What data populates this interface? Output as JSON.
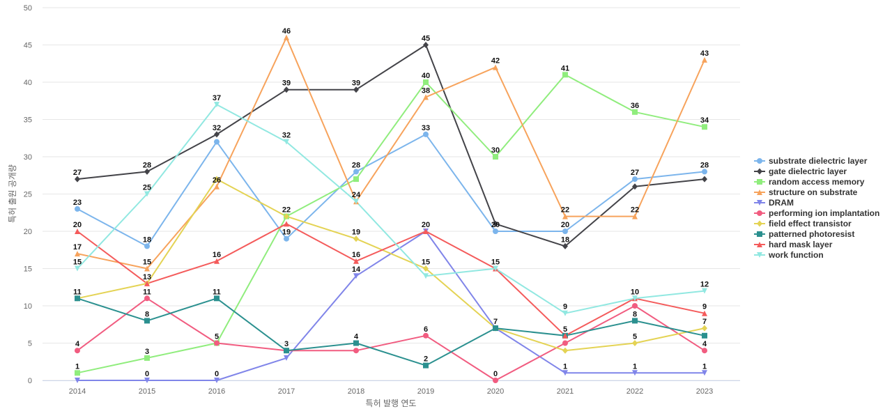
{
  "chart_data": {
    "type": "line",
    "xlabel": "특허 발행 연도",
    "ylabel": "특허 출원 공개량",
    "ylim": [
      0,
      50
    ],
    "yticks": [
      0,
      5,
      10,
      15,
      20,
      25,
      30,
      35,
      40,
      45,
      50
    ],
    "categories": [
      "2014",
      "2015",
      "2016",
      "2017",
      "2018",
      "2019",
      "2020",
      "2021",
      "2022",
      "2023"
    ],
    "grid": "horizontal",
    "legend_position": "right",
    "series": [
      {
        "name": "substrate dielectric layer",
        "color": "#7cb5ec",
        "marker": "circle",
        "values": [
          23,
          18,
          32,
          19,
          28,
          33,
          20,
          20,
          27,
          28
        ]
      },
      {
        "name": "gate dielectric layer",
        "color": "#434348",
        "marker": "diamond",
        "values": [
          27,
          28,
          33,
          39,
          39,
          45,
          21,
          18,
          26,
          27
        ]
      },
      {
        "name": "random access memory",
        "color": "#90ed7d",
        "marker": "square",
        "values": [
          1,
          3,
          5,
          22,
          27,
          40,
          30,
          41,
          36,
          34
        ]
      },
      {
        "name": "structure on substrate",
        "color": "#f7a35c",
        "marker": "triangle",
        "values": [
          17,
          15,
          26,
          46,
          24,
          38,
          42,
          22,
          22,
          43
        ]
      },
      {
        "name": "DRAM",
        "color": "#8085e9",
        "marker": "triangle-down",
        "values": [
          0,
          0,
          0,
          3,
          14,
          20,
          7,
          1,
          1,
          1
        ]
      },
      {
        "name": "performing ion implantation",
        "color": "#f15c80",
        "marker": "circle",
        "values": [
          4,
          11,
          5,
          4,
          4,
          6,
          0,
          5,
          10,
          4
        ]
      },
      {
        "name": "field effect transistor",
        "color": "#e4d354",
        "marker": "diamond",
        "values": [
          11,
          13,
          27,
          22,
          19,
          15,
          7,
          4,
          5,
          7
        ]
      },
      {
        "name": "patterned photoresist",
        "color": "#2b908f",
        "marker": "square",
        "values": [
          11,
          8,
          11,
          4,
          5,
          2,
          7,
          6,
          8,
          6
        ]
      },
      {
        "name": "hard mask layer",
        "color": "#f45b5b",
        "marker": "triangle",
        "values": [
          20,
          13,
          16,
          21,
          16,
          20,
          15,
          6,
          11,
          9
        ]
      },
      {
        "name": "work function",
        "color": "#91e8e1",
        "marker": "triangle-down",
        "values": [
          15,
          25,
          37,
          32,
          24,
          14,
          15,
          9,
          11,
          12
        ]
      }
    ],
    "data_labels": [
      {
        "text": "27",
        "x": "2014",
        "y": 27
      },
      {
        "text": "23",
        "x": "2014",
        "y": 23
      },
      {
        "text": "20",
        "x": "2014",
        "y": 20
      },
      {
        "text": "17",
        "x": "2014",
        "y": 17
      },
      {
        "text": "15",
        "x": "2014",
        "y": 15
      },
      {
        "text": "11",
        "x": "2014",
        "y": 11
      },
      {
        "text": "4",
        "x": "2014",
        "y": 4
      },
      {
        "text": "1",
        "x": "2014",
        "y": 1
      },
      {
        "text": "28",
        "x": "2015",
        "y": 28
      },
      {
        "text": "25",
        "x": "2015",
        "y": 25
      },
      {
        "text": "18",
        "x": "2015",
        "y": 18
      },
      {
        "text": "15",
        "x": "2015",
        "y": 15
      },
      {
        "text": "13",
        "x": "2015",
        "y": 13
      },
      {
        "text": "11",
        "x": "2015",
        "y": 11
      },
      {
        "text": "8",
        "x": "2015",
        "y": 8
      },
      {
        "text": "3",
        "x": "2015",
        "y": 3
      },
      {
        "text": "0",
        "x": "2015",
        "y": 0
      },
      {
        "text": "37",
        "x": "2016",
        "y": 37
      },
      {
        "text": "32",
        "x": "2016",
        "y": 33
      },
      {
        "text": "26",
        "x": "2016",
        "y": 26
      },
      {
        "text": "16",
        "x": "2016",
        "y": 16
      },
      {
        "text": "11",
        "x": "2016",
        "y": 11
      },
      {
        "text": "5",
        "x": "2016",
        "y": 5
      },
      {
        "text": "0",
        "x": "2016",
        "y": 0
      },
      {
        "text": "46",
        "x": "2017",
        "y": 46
      },
      {
        "text": "39",
        "x": "2017",
        "y": 39
      },
      {
        "text": "32",
        "x": "2017",
        "y": 32
      },
      {
        "text": "22",
        "x": "2017",
        "y": 22
      },
      {
        "text": "19",
        "x": "2017",
        "y": 19
      },
      {
        "text": "3",
        "x": "2017",
        "y": 4
      },
      {
        "text": "39",
        "x": "2018",
        "y": 39
      },
      {
        "text": "28",
        "x": "2018",
        "y": 28
      },
      {
        "text": "24",
        "x": "2018",
        "y": 24
      },
      {
        "text": "19",
        "x": "2018",
        "y": 19
      },
      {
        "text": "16",
        "x": "2018",
        "y": 16
      },
      {
        "text": "14",
        "x": "2018",
        "y": 14
      },
      {
        "text": "4",
        "x": "2018",
        "y": 5
      },
      {
        "text": "45",
        "x": "2019",
        "y": 45
      },
      {
        "text": "40",
        "x": "2019",
        "y": 40
      },
      {
        "text": "38",
        "x": "2019",
        "y": 38
      },
      {
        "text": "33",
        "x": "2019",
        "y": 33
      },
      {
        "text": "20",
        "x": "2019",
        "y": 20
      },
      {
        "text": "15",
        "x": "2019",
        "y": 15
      },
      {
        "text": "6",
        "x": "2019",
        "y": 6
      },
      {
        "text": "2",
        "x": "2019",
        "y": 2
      },
      {
        "text": "42",
        "x": "2020",
        "y": 42
      },
      {
        "text": "30",
        "x": "2020",
        "y": 30
      },
      {
        "text": "20",
        "x": "2020",
        "y": 20
      },
      {
        "text": "15",
        "x": "2020",
        "y": 15
      },
      {
        "text": "7",
        "x": "2020",
        "y": 7
      },
      {
        "text": "0",
        "x": "2020",
        "y": 0
      },
      {
        "text": "41",
        "x": "2021",
        "y": 41
      },
      {
        "text": "22",
        "x": "2021",
        "y": 22
      },
      {
        "text": "20",
        "x": "2021",
        "y": 20
      },
      {
        "text": "18",
        "x": "2021",
        "y": 18
      },
      {
        "text": "9",
        "x": "2021",
        "y": 9
      },
      {
        "text": "5",
        "x": "2021",
        "y": 6
      },
      {
        "text": "1",
        "x": "2021",
        "y": 1
      },
      {
        "text": "36",
        "x": "2022",
        "y": 36
      },
      {
        "text": "27",
        "x": "2022",
        "y": 27
      },
      {
        "text": "22",
        "x": "2022",
        "y": 22
      },
      {
        "text": "10",
        "x": "2022",
        "y": 11
      },
      {
        "text": "8",
        "x": "2022",
        "y": 8
      },
      {
        "text": "5",
        "x": "2022",
        "y": 5
      },
      {
        "text": "1",
        "x": "2022",
        "y": 1
      },
      {
        "text": "43",
        "x": "2023",
        "y": 43
      },
      {
        "text": "34",
        "x": "2023",
        "y": 34
      },
      {
        "text": "28",
        "x": "2023",
        "y": 28
      },
      {
        "text": "12",
        "x": "2023",
        "y": 12
      },
      {
        "text": "9",
        "x": "2023",
        "y": 9
      },
      {
        "text": "7",
        "x": "2023",
        "y": 7
      },
      {
        "text": "4",
        "x": "2023",
        "y": 4
      },
      {
        "text": "1",
        "x": "2023",
        "y": 1
      }
    ]
  }
}
